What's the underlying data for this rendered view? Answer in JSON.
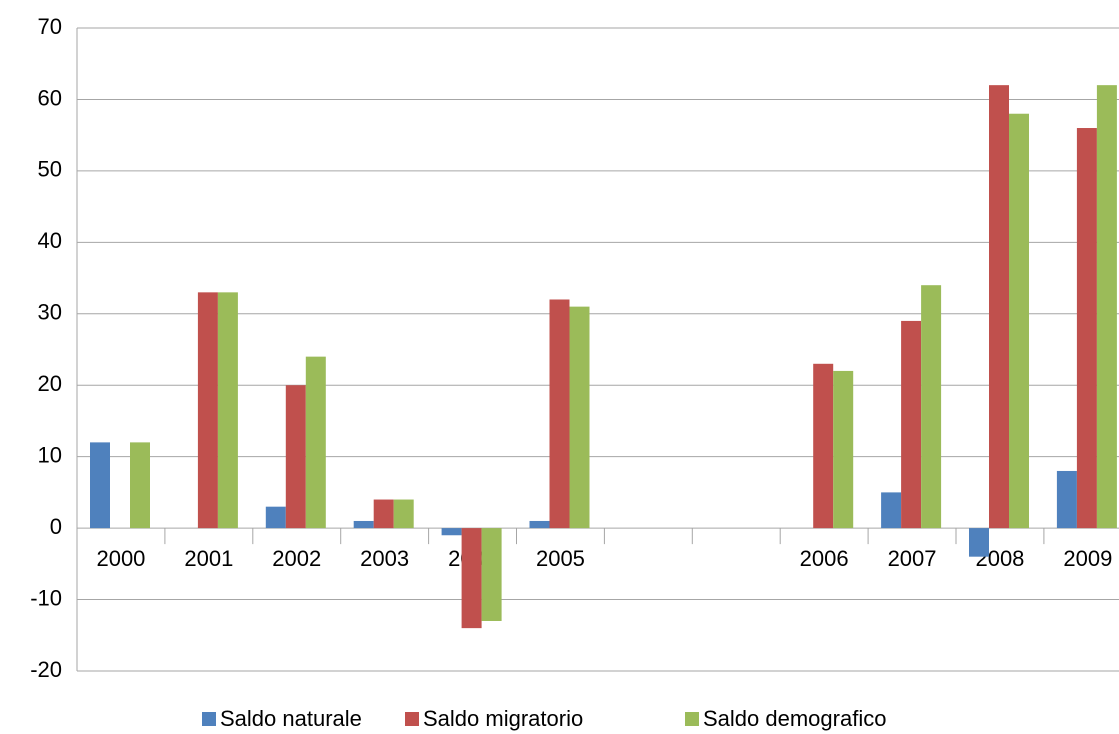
{
  "chart_data": {
    "type": "bar",
    "categories": [
      "2000",
      "2001",
      "2002",
      "2003",
      "2004",
      "2005",
      null,
      null,
      "2006",
      "2007",
      "2008",
      "2009"
    ],
    "series": [
      {
        "name": "Saldo naturale",
        "color": "#4f81bd",
        "values": [
          12,
          0,
          3,
          1,
          -1,
          1,
          null,
          null,
          0,
          5,
          -4,
          8
        ]
      },
      {
        "name": "Saldo migratorio",
        "color": "#c0504d",
        "values": [
          0,
          33,
          20,
          4,
          -14,
          32,
          null,
          null,
          23,
          29,
          62,
          56
        ]
      },
      {
        "name": "Saldo demografico",
        "color": "#9bbb59",
        "values": [
          12,
          33,
          24,
          4,
          -13,
          31,
          null,
          null,
          22,
          34,
          58,
          62
        ]
      }
    ],
    "ylim": [
      -20,
      70
    ],
    "yticks": [
      -20,
      -10,
      0,
      10,
      20,
      30,
      40,
      50,
      60,
      70
    ],
    "grid": true,
    "legend": "bottom"
  }
}
